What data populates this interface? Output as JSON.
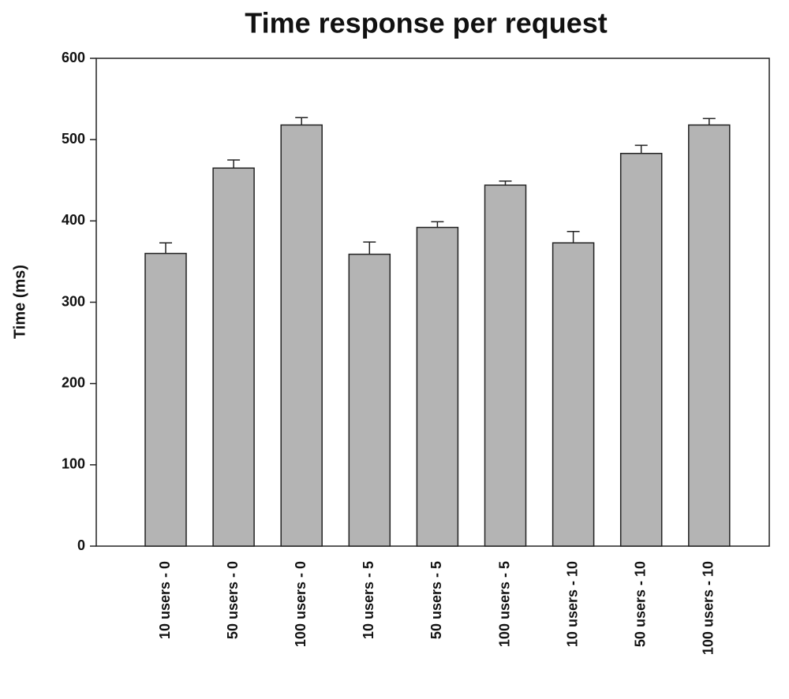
{
  "chart_data": {
    "type": "bar",
    "title": "Time response per request",
    "y_label": "Time (ms)",
    "categories": [
      "10 users - 0",
      "50 users - 0",
      "100 users - 0",
      "10 users - 5",
      "50 users - 5",
      "100 users - 5",
      "10 users - 10",
      "50 users - 10",
      "100 users - 10"
    ],
    "values": [
      360,
      465,
      518,
      359,
      392,
      444,
      373,
      483,
      518
    ],
    "errors": [
      13,
      10,
      9,
      15,
      7,
      5,
      14,
      10,
      8
    ],
    "color": "#b4b4b4",
    "ylim": [
      0,
      600
    ],
    "yticks": [
      0,
      100,
      200,
      300,
      400,
      500,
      600
    ],
    "grid": false
  }
}
